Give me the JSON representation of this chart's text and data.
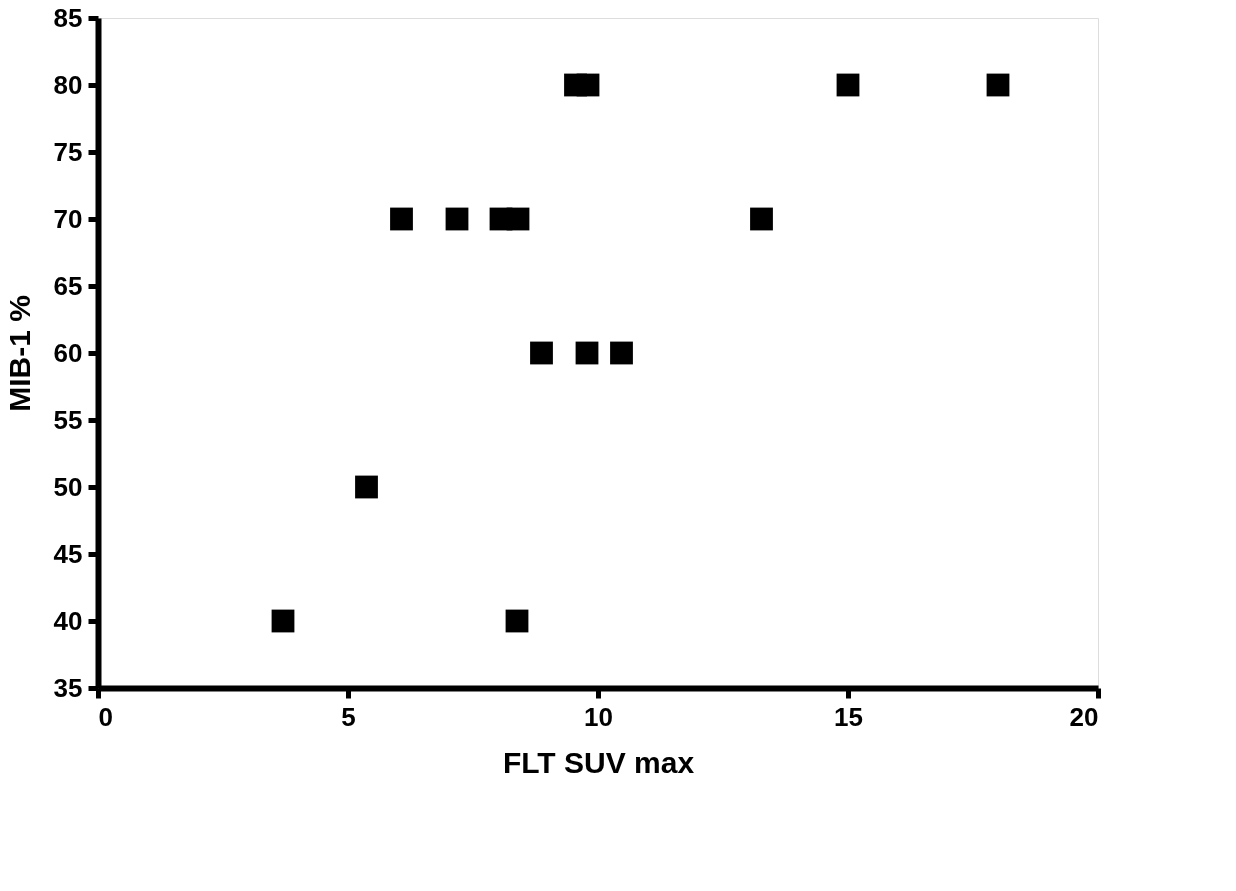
{
  "chart_data": {
    "type": "scatter",
    "xlabel": "FLT SUV max",
    "ylabel": "MIB-1 %",
    "x": [
      3.7,
      8.38,
      5.37,
      8.87,
      9.78,
      10.47,
      6.07,
      7.18,
      8.06,
      8.4,
      13.27,
      9.55,
      9.8,
      15.0,
      18.0
    ],
    "series": [
      {
        "color": "#000000",
        "values": [
          40,
          40,
          50,
          60,
          60,
          60,
          70,
          70,
          70,
          70,
          70,
          80,
          80,
          80,
          80
        ]
      }
    ],
    "xlim": [
      0,
      20
    ],
    "xticks": [
      0,
      5,
      10,
      15,
      20
    ],
    "ylim": [
      35,
      85
    ],
    "yticks": [
      35,
      40,
      45,
      50,
      55,
      60,
      65,
      70,
      75,
      80,
      85
    ],
    "grid": false,
    "legend": false,
    "marker": "square"
  }
}
